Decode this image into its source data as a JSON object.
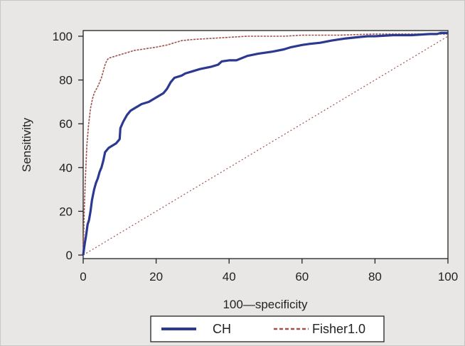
{
  "chart_data": {
    "type": "line",
    "xlabel": "100—specificity",
    "ylabel": "Sensitivity",
    "xlim": [
      0,
      100
    ],
    "ylim": [
      0,
      100
    ],
    "x_ticks": [
      0,
      20,
      40,
      60,
      80,
      100
    ],
    "y_ticks": [
      0,
      20,
      40,
      60,
      80,
      100
    ],
    "legend_position": "bottom",
    "series": [
      {
        "name": "CH",
        "color": "#2b3990",
        "style": "solid",
        "x": [
          0,
          0.4,
          0.8,
          1.2,
          1.6,
          2,
          2.4,
          3,
          3.5,
          4,
          4.5,
          5,
          5.5,
          6,
          7,
          8,
          9,
          10,
          10.2,
          11,
          12,
          13,
          14,
          15,
          16,
          18,
          20,
          22,
          23,
          24,
          25,
          27,
          28,
          30,
          32,
          35,
          37,
          38,
          40,
          42,
          45,
          48,
          50,
          52,
          55,
          57,
          60,
          62,
          65,
          68,
          70,
          72,
          75,
          78,
          80,
          85,
          90,
          95,
          97,
          98,
          100
        ],
        "y": [
          0,
          5,
          9,
          14,
          16,
          20,
          25,
          30,
          33,
          35,
          38,
          40,
          43,
          47,
          49,
          50,
          51,
          53,
          58,
          61,
          64,
          66,
          67,
          68,
          69,
          70,
          72,
          74,
          76,
          79,
          81,
          82,
          83,
          84,
          85,
          86,
          87,
          88.5,
          89,
          89,
          91,
          92,
          92.5,
          93,
          94,
          95,
          96,
          96.5,
          97,
          98,
          98.5,
          99,
          99.5,
          100,
          100,
          100.5,
          100.5,
          101,
          101,
          101.5,
          101.5
        ]
      },
      {
        "name": "Fisher1.0",
        "color": "#a0524e",
        "style": "dashed",
        "x": [
          0,
          0.3,
          0.6,
          1,
          1.5,
          2,
          2.5,
          3,
          4,
          5,
          5.5,
          6,
          6.5,
          7,
          8,
          10,
          12,
          14,
          16,
          18,
          20,
          23,
          25,
          27,
          30,
          35,
          40,
          45,
          50,
          55,
          60,
          70,
          80,
          90,
          100
        ],
        "y": [
          0,
          20,
          35,
          50,
          60,
          67,
          71,
          74,
          77,
          81,
          84,
          87,
          89,
          90,
          90.5,
          91.5,
          92.5,
          93.5,
          94,
          94.5,
          95,
          96,
          97,
          98,
          98.5,
          99,
          99.5,
          100,
          100,
          100,
          100.5,
          100.5,
          101,
          101,
          101
        ]
      },
      {
        "name": "",
        "color": "#a0524e",
        "style": "dotted",
        "x": [
          0,
          100
        ],
        "y": [
          0,
          100
        ]
      }
    ]
  }
}
